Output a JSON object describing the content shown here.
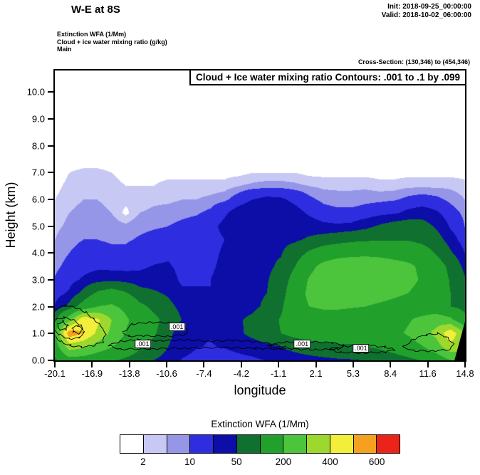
{
  "header": {
    "title": "W-E at 8S",
    "init_label": "Init: 2018-09-25_00:00:00",
    "valid_label": "Valid: 2018-10-02_06:00:00",
    "field_lines": [
      "Extinction WFA   (1/Mm)",
      "Cloud + ice water mixing ratio   (g/kg)",
      "Main"
    ],
    "cross_section": "Cross-Section: (130,346) to (454,346)"
  },
  "plot": {
    "inner_title": "Cloud + Ice water mixing ratio Contours: .001 to .1 by .099",
    "xlabel": "longitude",
    "ylabel": "Height (km)",
    "x_ticks": [
      "-20.1",
      "-16.9",
      "-13.8",
      "-10.6",
      "-7.4",
      "-4.2",
      "-1.1",
      "2.1",
      "5.3",
      "8.4",
      "11.6",
      "14.8"
    ],
    "y_ticks": [
      "0.0",
      "1.0",
      "2.0",
      "3.0",
      "4.0",
      "5.0",
      "6.0",
      "7.0",
      "8.0",
      "9.0",
      "10.0"
    ]
  },
  "colorbar": {
    "title": "Extinction WFA  (1/Mm)",
    "tick_labels": [
      "2",
      "10",
      "50",
      "200",
      "400",
      "600"
    ],
    "tick_positions": [
      1,
      3,
      5,
      7,
      9,
      11
    ]
  },
  "chart_data": {
    "type": "heatmap",
    "title": "Extinction WFA (1/Mm) with Cloud + Ice water mixing ratio contours (.001 to .1 by .099), W-E cross-section at 8S",
    "xlabel": "longitude",
    "ylabel": "Height (km)",
    "x_range": [
      -20.1,
      14.8
    ],
    "y_range": [
      0,
      10.81
    ],
    "levels": [
      2,
      5,
      10,
      25,
      50,
      100,
      200,
      300,
      400,
      500,
      600
    ],
    "colors": [
      "#ffffff",
      "#c8c8f4",
      "#9696e8",
      "#2e2ee0",
      "#0d0da8",
      "#0f7030",
      "#22a02c",
      "#4cc43c",
      "#9cd82e",
      "#f2ef3a",
      "#f5a01e",
      "#eb241a"
    ],
    "grid": {
      "h_top": 7.5,
      "h_step": 0.5,
      "lon_min": -20.1,
      "lon_max": 14.8,
      "values": [
        [
          0,
          0,
          0,
          0,
          0,
          0,
          0,
          0,
          0,
          0,
          0,
          0,
          0,
          0,
          0,
          0,
          0,
          0,
          0,
          0,
          0,
          0,
          0,
          0,
          0,
          0,
          0,
          0,
          0,
          0
        ],
        [
          0,
          2,
          3,
          3,
          2,
          1,
          1,
          1,
          1,
          1,
          1,
          1,
          1,
          1,
          2,
          2,
          2,
          2,
          1,
          1,
          1,
          1,
          1,
          1,
          1,
          1,
          1,
          1,
          1,
          1
        ],
        [
          1,
          3,
          4,
          4,
          3,
          2,
          2,
          2,
          3,
          3,
          3,
          3,
          3,
          5,
          6,
          7,
          7,
          6,
          5,
          4,
          4,
          4,
          4,
          3,
          3,
          4,
          4,
          4,
          4,
          3
        ],
        [
          2,
          4,
          5,
          5,
          4,
          3,
          3,
          4,
          4,
          5,
          5,
          6,
          8,
          15,
          25,
          30,
          28,
          20,
          12,
          8,
          7,
          7,
          8,
          8,
          9,
          12,
          14,
          12,
          8,
          5
        ],
        [
          3,
          5,
          6,
          6,
          5,
          1,
          5,
          6,
          7,
          8,
          9,
          12,
          22,
          35,
          45,
          45,
          40,
          32,
          22,
          14,
          12,
          12,
          14,
          18,
          22,
          30,
          35,
          28,
          14,
          8
        ],
        [
          4,
          6,
          8,
          8,
          7,
          6,
          8,
          9,
          10,
          12,
          14,
          20,
          30,
          40,
          45,
          45,
          42,
          38,
          35,
          30,
          28,
          30,
          40,
          55,
          65,
          70,
          65,
          45,
          22,
          10
        ],
        [
          5,
          8,
          10,
          10,
          9,
          9,
          11,
          13,
          14,
          15,
          16,
          18,
          25,
          40,
          45,
          45,
          42,
          45,
          55,
          65,
          75,
          85,
          90,
          95,
          95,
          95,
          85,
          65,
          35,
          15
        ],
        [
          6,
          10,
          13,
          13,
          12,
          12,
          15,
          18,
          20,
          16,
          18,
          20,
          28,
          42,
          45,
          45,
          48,
          70,
          110,
          140,
          160,
          170,
          175,
          170,
          160,
          150,
          130,
          95,
          55,
          25
        ],
        [
          8,
          13,
          18,
          20,
          18,
          18,
          22,
          26,
          28,
          18,
          20,
          22,
          30,
          42,
          45,
          45,
          55,
          100,
          170,
          230,
          260,
          270,
          270,
          260,
          240,
          220,
          180,
          130,
          85,
          40
        ],
        [
          11,
          18,
          28,
          38,
          42,
          38,
          32,
          34,
          36,
          20,
          22,
          25,
          32,
          42,
          45,
          48,
          65,
          130,
          210,
          260,
          280,
          285,
          280,
          265,
          245,
          225,
          190,
          140,
          95,
          55
        ],
        [
          16,
          28,
          60,
          110,
          130,
          105,
          65,
          55,
          45,
          30,
          28,
          25,
          35,
          42,
          45,
          50,
          75,
          150,
          220,
          250,
          260,
          260,
          250,
          235,
          215,
          200,
          170,
          135,
          100,
          65
        ],
        [
          28,
          60,
          130,
          200,
          215,
          175,
          115,
          85,
          60,
          40,
          32,
          28,
          38,
          42,
          45,
          55,
          90,
          160,
          200,
          210,
          210,
          205,
          200,
          185,
          175,
          165,
          145,
          125,
          100,
          80
        ],
        [
          80,
          260,
          480,
          420,
          300,
          215,
          155,
          115,
          80,
          48,
          38,
          36,
          42,
          48,
          55,
          75,
          105,
          140,
          160,
          168,
          168,
          162,
          160,
          162,
          172,
          192,
          222,
          262,
          222,
          120
        ],
        [
          200,
          560,
          500,
          380,
          275,
          195,
          145,
          108,
          60,
          30,
          26,
          26,
          32,
          45,
          60,
          80,
          100,
          120,
          135,
          145,
          148,
          145,
          150,
          160,
          180,
          210,
          260,
          330,
          470,
          300
        ],
        [
          150,
          350,
          320,
          255,
          205,
          155,
          108,
          78,
          50,
          32,
          26,
          24,
          26,
          30,
          34,
          40,
          50,
          62,
          72,
          80,
          86,
          90,
          98,
          110,
          130,
          155,
          195,
          255,
          370,
          320
        ],
        [
          90,
          160,
          150,
          128,
          108,
          88,
          68,
          50,
          36,
          24,
          20,
          18,
          18,
          20,
          22,
          26,
          30,
          34,
          38,
          42,
          46,
          48,
          52,
          60,
          70,
          85,
          105,
          140,
          200,
          240
        ]
      ]
    },
    "terrain": [
      [
        13.9,
        0
      ],
      [
        14.8,
        0
      ],
      [
        14.8,
        1.45
      ]
    ],
    "cloud_contour_level": ".001",
    "cloud_contours": [
      {
        "closed": false,
        "pts": [
          [
            -20.1,
            1.9
          ],
          [
            -19.2,
            2.05
          ],
          [
            -18.3,
            1.95
          ],
          [
            -17.5,
            1.8
          ],
          [
            -16.8,
            1.55
          ],
          [
            -16.2,
            1.3
          ],
          [
            -15.8,
            1.0
          ],
          [
            -16.0,
            0.7
          ],
          [
            -16.8,
            0.55
          ],
          [
            -17.8,
            0.5
          ],
          [
            -18.8,
            0.55
          ],
          [
            -19.6,
            0.7
          ],
          [
            -20.1,
            0.9
          ]
        ]
      },
      {
        "closed": false,
        "pts": [
          [
            -20.1,
            1.5
          ],
          [
            -19.3,
            1.6
          ],
          [
            -18.5,
            1.5
          ],
          [
            -17.9,
            1.3
          ],
          [
            -17.6,
            1.05
          ],
          [
            -18.0,
            0.85
          ],
          [
            -18.9,
            0.8
          ],
          [
            -19.7,
            0.95
          ],
          [
            -20.1,
            1.1
          ]
        ]
      },
      {
        "closed": true,
        "pts": [
          [
            -19.9,
            1.35
          ],
          [
            -19.4,
            1.45
          ],
          [
            -19.0,
            1.3
          ],
          [
            -19.2,
            1.15
          ],
          [
            -19.7,
            1.15
          ]
        ]
      },
      {
        "closed": true,
        "pts": [
          [
            -18.6,
            1.2
          ],
          [
            -18.1,
            1.3
          ],
          [
            -17.8,
            1.15
          ],
          [
            -18.0,
            1.0
          ],
          [
            -18.5,
            1.05
          ]
        ]
      },
      {
        "closed": true,
        "pts": [
          [
            -14.3,
            1.05
          ],
          [
            -13.5,
            1.35
          ],
          [
            -12.0,
            1.42
          ],
          [
            -10.5,
            1.4
          ],
          [
            -9.3,
            1.3
          ],
          [
            -8.8,
            1.1
          ],
          [
            -9.0,
            0.95
          ],
          [
            -10.5,
            0.9
          ],
          [
            -12.5,
            0.92
          ],
          [
            -13.8,
            0.9
          ]
        ]
      },
      {
        "closed": true,
        "pts": [
          [
            -15.6,
            0.55
          ],
          [
            -14.5,
            0.72
          ],
          [
            -13.0,
            0.76
          ],
          [
            -11.0,
            0.73
          ],
          [
            -9.0,
            0.76
          ],
          [
            -7.0,
            0.72
          ],
          [
            -5.0,
            0.74
          ],
          [
            -3.0,
            0.7
          ],
          [
            -1.5,
            0.6
          ],
          [
            -0.5,
            0.5
          ],
          [
            -1.0,
            0.42
          ],
          [
            -3.0,
            0.45
          ],
          [
            -6.0,
            0.48
          ],
          [
            -9.0,
            0.45
          ],
          [
            -12.0,
            0.43
          ],
          [
            -14.5,
            0.42
          ]
        ]
      },
      {
        "closed": true,
        "pts": [
          [
            -2.0,
            0.56
          ],
          [
            -0.5,
            0.68
          ],
          [
            1.5,
            0.7
          ],
          [
            3.5,
            0.66
          ],
          [
            4.5,
            0.55
          ],
          [
            4.0,
            0.42
          ],
          [
            2.0,
            0.4
          ],
          [
            0.0,
            0.42
          ],
          [
            -1.5,
            0.46
          ]
        ]
      },
      {
        "closed": true,
        "pts": [
          [
            3.2,
            0.42
          ],
          [
            4.5,
            0.52
          ],
          [
            6.5,
            0.56
          ],
          [
            8.0,
            0.5
          ],
          [
            8.8,
            0.4
          ],
          [
            8.0,
            0.3
          ],
          [
            6.0,
            0.28
          ],
          [
            4.2,
            0.3
          ]
        ]
      },
      {
        "closed": true,
        "pts": [
          [
            9.5,
            0.5
          ],
          [
            10.5,
            0.8
          ],
          [
            11.5,
            0.95
          ],
          [
            12.5,
            1.0
          ],
          [
            13.3,
            0.85
          ],
          [
            13.8,
            0.6
          ],
          [
            13.5,
            0.4
          ],
          [
            12.0,
            0.35
          ],
          [
            10.5,
            0.35
          ]
        ]
      }
    ],
    "contour_labels": [
      {
        "text": ".001",
        "lon": -9.7,
        "h": 1.24
      },
      {
        "text": ".001",
        "lon": -12.6,
        "h": 0.61
      },
      {
        "text": ".001",
        "lon": 0.95,
        "h": 0.6
      },
      {
        "text": ".001",
        "lon": 5.95,
        "h": 0.45
      }
    ]
  }
}
